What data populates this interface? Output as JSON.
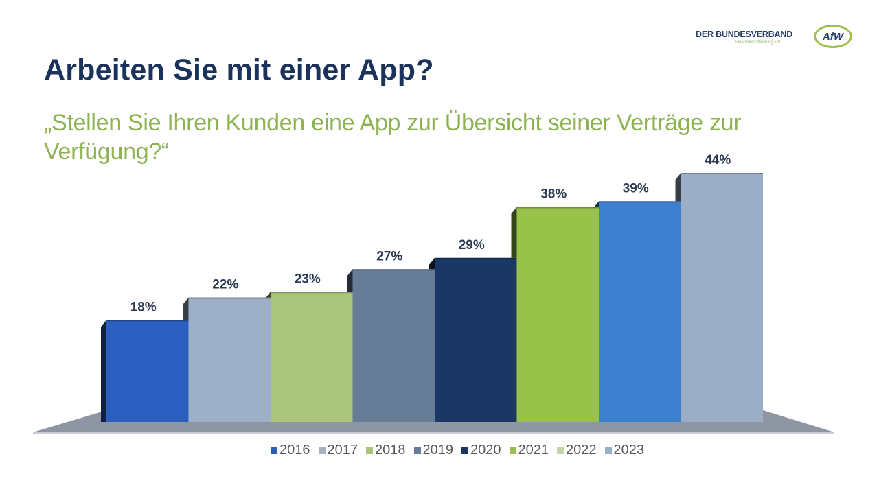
{
  "logo": {
    "name": "DER BUNDESVERBAND",
    "tagline": "Finanzdienstleistung e.V.",
    "mark": "AfW"
  },
  "header": {
    "title": "Arbeiten Sie mit einer App?",
    "subtitle": "„Stellen Sie Ihren Kunden eine App zur Übersicht seiner Verträge zur Verfügung?“"
  },
  "chart_data": {
    "type": "bar",
    "title": "Arbeiten Sie mit einer App?",
    "subtitle": "„Stellen Sie Ihren Kunden eine App zur Übersicht seiner Verträge zur Verfügung?“",
    "xlabel": "",
    "ylabel": "",
    "ylim": [
      0,
      44
    ],
    "grid": false,
    "legend_position": "bottom",
    "unit": "%",
    "categories": [
      "2016",
      "2017",
      "2018",
      "2019",
      "2020",
      "2021",
      "2022",
      "2023"
    ],
    "values": [
      18,
      22,
      23,
      27,
      29,
      38,
      39,
      44
    ],
    "data_labels": [
      "18%",
      "22%",
      "23%",
      "27%",
      "29%",
      "38%",
      "39%",
      "44%"
    ],
    "bar_colors": [
      "#2a5fbf",
      "#9eb0c8",
      "#aac47c",
      "#677c96",
      "#1b3763",
      "#99c24a",
      "#3d80d0",
      "#9caec6"
    ],
    "legend": [
      {
        "label": "2016",
        "color": "#2a5fbf"
      },
      {
        "label": "2017",
        "color": "#a7b2c2"
      },
      {
        "label": "2018",
        "color": "#aac47c"
      },
      {
        "label": "2019",
        "color": "#677c96"
      },
      {
        "label": "2020",
        "color": "#1b3763"
      },
      {
        "label": "2021",
        "color": "#99c24a"
      },
      {
        "label": "2022",
        "color": "#c3d6a6"
      },
      {
        "label": "2023",
        "color": "#9caec6"
      }
    ],
    "floor_color": "#8e96a3",
    "label_color": "#2a3a52"
  }
}
